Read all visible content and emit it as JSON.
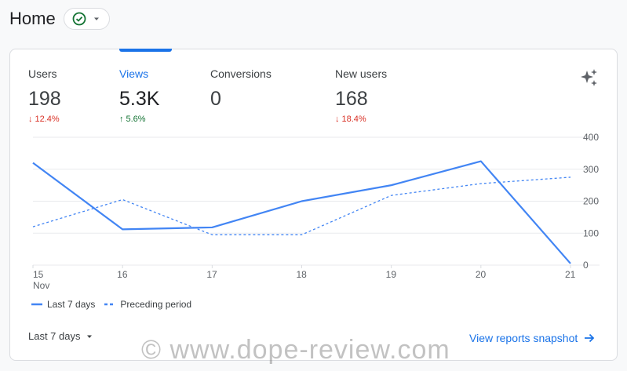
{
  "header": {
    "title": "Home"
  },
  "metrics": [
    {
      "label": "Users",
      "value": "198",
      "delta": "12.4%",
      "direction": "down"
    },
    {
      "label": "Views",
      "value": "5.3K",
      "delta": "5.6%",
      "direction": "up"
    },
    {
      "label": "Conversions",
      "value": "0",
      "delta": "",
      "direction": ""
    },
    {
      "label": "New users",
      "value": "168",
      "delta": "18.4%",
      "direction": "down"
    }
  ],
  "legend": {
    "current": "Last 7 days",
    "previous": "Preceding period"
  },
  "footer": {
    "date_range": "Last 7 days",
    "snapshot_link": "View reports snapshot"
  },
  "watermark": "© www.dope-review.com",
  "colors": {
    "accent": "#1a73e8",
    "line": "#4285f4",
    "down": "#d93025",
    "up": "#137333"
  },
  "chart_data": {
    "type": "line",
    "x": [
      "15",
      "16",
      "17",
      "18",
      "19",
      "20",
      "21"
    ],
    "x_sublabels": [
      "Nov",
      "",
      "",
      "",
      "",
      "",
      ""
    ],
    "ylim": [
      0,
      400
    ],
    "y_ticks": [
      "0",
      "100",
      "200",
      "300",
      "400"
    ],
    "y_axis_side": "right",
    "grid": true,
    "series": [
      {
        "name": "Last 7 days",
        "values": [
          320,
          112,
          118,
          200,
          250,
          325,
          5
        ],
        "style": "solid"
      },
      {
        "name": "Preceding period",
        "values": [
          120,
          205,
          95,
          95,
          218,
          255,
          275
        ],
        "style": "dashed"
      }
    ]
  }
}
